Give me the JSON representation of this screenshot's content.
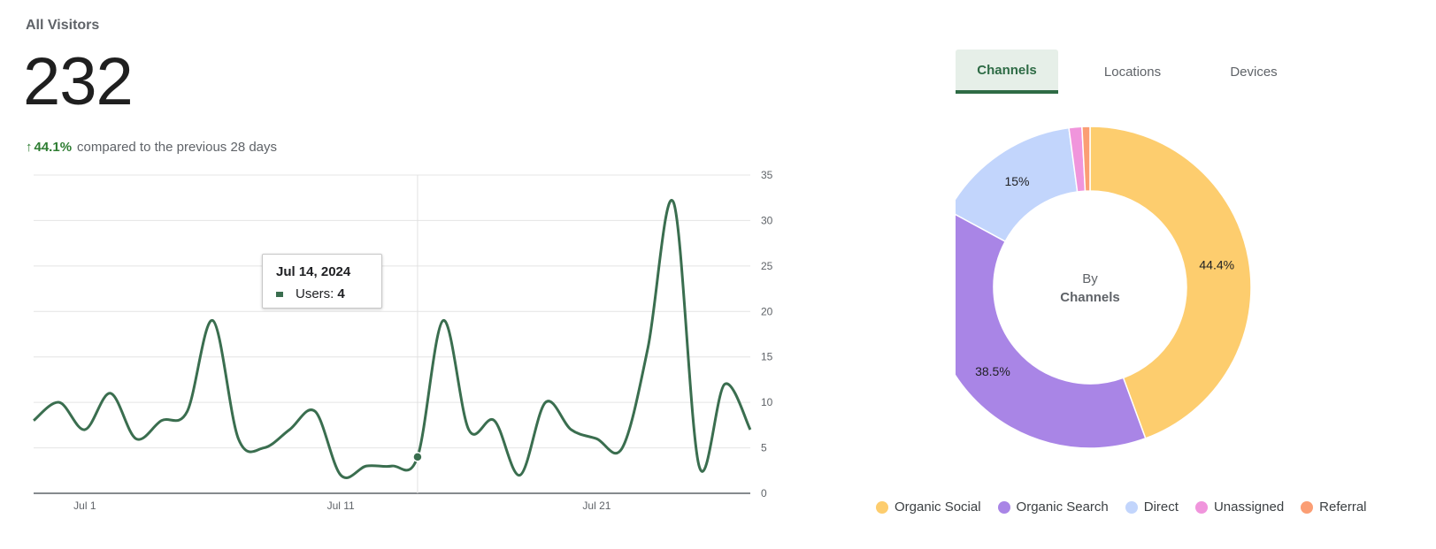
{
  "header": {
    "title": "All Visitors",
    "total": "232",
    "change_arrow": "↑",
    "change_pct": "44.1%",
    "change_text": "compared to the previous 28 days"
  },
  "tooltip": {
    "date": "Jul 14, 2024",
    "series_label": "Users:",
    "value": "4"
  },
  "tabs": [
    {
      "label": "Channels",
      "active": true
    },
    {
      "label": "Locations",
      "active": false
    },
    {
      "label": "Devices",
      "active": false
    }
  ],
  "donut_center": {
    "line1": "By",
    "line2": "Channels"
  },
  "chart_data": [
    {
      "type": "line",
      "x": [
        "Jun 29",
        "Jun 30",
        "Jul 1",
        "Jul 2",
        "Jul 3",
        "Jul 4",
        "Jul 5",
        "Jul 6",
        "Jul 7",
        "Jul 8",
        "Jul 9",
        "Jul 10",
        "Jul 11",
        "Jul 12",
        "Jul 13",
        "Jul 14",
        "Jul 15",
        "Jul 16",
        "Jul 17",
        "Jul 18",
        "Jul 19",
        "Jul 20",
        "Jul 21",
        "Jul 22",
        "Jul 23",
        "Jul 24",
        "Jul 25",
        "Jul 26",
        "Jul 27"
      ],
      "series": [
        {
          "name": "Users",
          "color": "#3a6e4f",
          "values": [
            8,
            10,
            7,
            11,
            6,
            8,
            9,
            19,
            6,
            5,
            7,
            9,
            2,
            3,
            3,
            4,
            19,
            7,
            8,
            2,
            10,
            7,
            6,
            5,
            16,
            32,
            3,
            12,
            7
          ]
        }
      ],
      "x_ticks": [
        "Jul 1",
        "Jul 11",
        "Jul 21"
      ],
      "y_ticks": [
        0,
        5,
        10,
        15,
        20,
        25,
        30,
        35
      ],
      "ylim": [
        0,
        35
      ],
      "grid": true,
      "highlight": {
        "x": "Jul 14",
        "value": 4
      }
    },
    {
      "type": "pie",
      "subtype": "donut",
      "categories": [
        "Organic Social",
        "Organic Search",
        "Direct",
        "Unassigned",
        "Referral"
      ],
      "values": [
        44.4,
        38.5,
        15,
        1.3,
        0.8
      ],
      "labels": [
        "44.4%",
        "38.5%",
        "15%",
        "",
        ""
      ],
      "colors": [
        "#fdcd6e",
        "#a985e6",
        "#c2d5fc",
        "#f095dc",
        "#fb9e74"
      ],
      "legend": "bottom"
    }
  ]
}
